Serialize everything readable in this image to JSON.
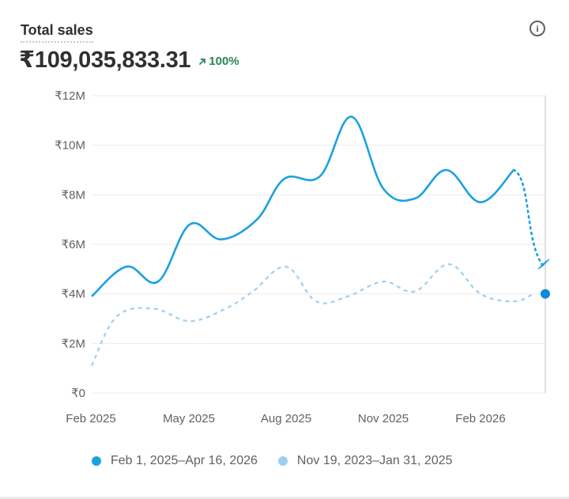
{
  "card": {
    "title": "Total sales",
    "total": "₹109,035,833.31",
    "change": "100%",
    "info_icon": "info-icon",
    "change_icon": "arrow-up-right-icon"
  },
  "colors": {
    "current": "#1ba1e0",
    "previous": "#9fcfee",
    "grid": "#ebebeb",
    "positive": "#29845a"
  },
  "chart_data": {
    "type": "line",
    "ylim": [
      0,
      12000000
    ],
    "y_ticks": [
      "₹0",
      "₹2M",
      "₹4M",
      "₹6M",
      "₹8M",
      "₹10M",
      "₹12M"
    ],
    "x_ticks": [
      "Feb 2025",
      "May 2025",
      "Aug 2025",
      "Nov 2025",
      "Feb 2026"
    ],
    "legend_position": "bottom",
    "grid": true,
    "series": [
      {
        "name": "Feb 1, 2025–Apr 16, 2026",
        "style": "solid",
        "values": [
          3.9,
          5.1,
          4.5,
          6.8,
          6.2,
          7.0,
          8.65,
          8.75,
          11.15,
          8.25,
          7.85,
          9.0,
          7.7,
          9.0
        ],
        "partial_values": [
          9.0,
          5.1
        ],
        "final_value": 4.0
      },
      {
        "name": "Nov 19, 2023–Jan 31, 2025",
        "style": "dashed",
        "values": [
          1.1,
          3.1,
          3.4,
          2.9,
          3.4,
          4.1,
          5.1,
          3.7,
          3.9,
          4.5,
          4.1,
          5.2,
          4.0,
          3.7,
          4.0
        ]
      }
    ],
    "value_unit": "₹M"
  }
}
